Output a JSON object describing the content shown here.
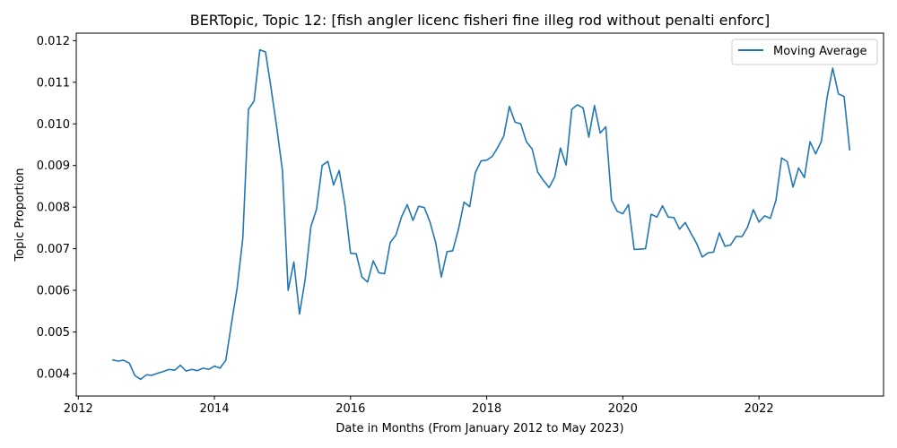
{
  "chart_data": {
    "type": "line",
    "title": "BERTopic, Topic 12: [fish angler licenc fisheri fine illeg rod without penalti enforc]",
    "xlabel": "Date in Months (From January 2012 to May 2023)",
    "ylabel": "Topic Proportion",
    "xlim": [
      2011.97,
      2023.83
    ],
    "ylim": [
      0.00346,
      0.01218
    ],
    "x_ticks": [
      2012,
      2014,
      2016,
      2018,
      2020,
      2022
    ],
    "y_ticks": [
      0.004,
      0.005,
      0.006,
      0.007,
      0.008,
      0.009,
      0.01,
      0.011,
      0.012
    ],
    "y_tick_labels": [
      "0.004",
      "0.005",
      "0.006",
      "0.007",
      "0.008",
      "0.009",
      "0.010",
      "0.011",
      "0.012"
    ],
    "grid": false,
    "legend_position": "top-right",
    "series": [
      {
        "name": "Moving Average",
        "color": "#1f77b4",
        "x": [
          2012.5,
          2012.583,
          2012.667,
          2012.75,
          2012.833,
          2012.917,
          2013.0,
          2013.083,
          2013.167,
          2013.25,
          2013.333,
          2013.417,
          2013.5,
          2013.583,
          2013.667,
          2013.75,
          2013.833,
          2013.917,
          2014.0,
          2014.083,
          2014.167,
          2014.25,
          2014.333,
          2014.417,
          2014.5,
          2014.583,
          2014.667,
          2014.75,
          2014.833,
          2014.917,
          2015.0,
          2015.083,
          2015.167,
          2015.25,
          2015.333,
          2015.417,
          2015.5,
          2015.583,
          2015.667,
          2015.75,
          2015.833,
          2015.917,
          2016.0,
          2016.083,
          2016.167,
          2016.25,
          2016.333,
          2016.417,
          2016.5,
          2016.583,
          2016.667,
          2016.75,
          2016.833,
          2016.917,
          2017.0,
          2017.083,
          2017.167,
          2017.25,
          2017.333,
          2017.417,
          2017.5,
          2017.583,
          2017.667,
          2017.75,
          2017.833,
          2017.917,
          2018.0,
          2018.083,
          2018.167,
          2018.25,
          2018.333,
          2018.417,
          2018.5,
          2018.583,
          2018.667,
          2018.75,
          2018.833,
          2018.917,
          2019.0,
          2019.083,
          2019.167,
          2019.25,
          2019.333,
          2019.417,
          2019.5,
          2019.583,
          2019.667,
          2019.75,
          2019.833,
          2019.917,
          2020.0,
          2020.083,
          2020.167,
          2020.25,
          2020.333,
          2020.417,
          2020.5,
          2020.583,
          2020.667,
          2020.75,
          2020.833,
          2020.917,
          2021.0,
          2021.083,
          2021.167,
          2021.25,
          2021.333,
          2021.417,
          2021.5,
          2021.583,
          2021.667,
          2021.75,
          2021.833,
          2021.917,
          2022.0,
          2022.083,
          2022.167,
          2022.25,
          2022.333,
          2022.417,
          2022.5,
          2022.583,
          2022.667,
          2022.75,
          2022.833,
          2022.917,
          2023.0,
          2023.083,
          2023.167,
          2023.25,
          2023.333
        ],
        "values": [
          0.00433,
          0.0043,
          0.00432,
          0.00425,
          0.00395,
          0.00386,
          0.00397,
          0.00396,
          0.00401,
          0.00405,
          0.0041,
          0.00408,
          0.0042,
          0.00406,
          0.0041,
          0.00407,
          0.00413,
          0.0041,
          0.00418,
          0.00413,
          0.00432,
          0.0052,
          0.00605,
          0.00725,
          0.01035,
          0.01055,
          0.01178,
          0.01173,
          0.01085,
          0.0099,
          0.00887,
          0.006,
          0.00668,
          0.00543,
          0.00626,
          0.00753,
          0.00795,
          0.009,
          0.0091,
          0.00853,
          0.00888,
          0.00805,
          0.00689,
          0.00688,
          0.00632,
          0.0062,
          0.00671,
          0.00642,
          0.0064,
          0.00715,
          0.00733,
          0.00777,
          0.00806,
          0.00768,
          0.00802,
          0.00799,
          0.00764,
          0.00715,
          0.00632,
          0.00693,
          0.00695,
          0.00745,
          0.00812,
          0.00801,
          0.00883,
          0.00911,
          0.00913,
          0.00922,
          0.00945,
          0.0097,
          0.01042,
          0.01004,
          0.01,
          0.00957,
          0.0094,
          0.00884,
          0.00864,
          0.00847,
          0.00873,
          0.00942,
          0.00901,
          0.01035,
          0.01046,
          0.01038,
          0.00968,
          0.01044,
          0.00978,
          0.00993,
          0.00817,
          0.0079,
          0.00784,
          0.00806,
          0.00698,
          0.00699,
          0.007,
          0.00783,
          0.00776,
          0.00803,
          0.00776,
          0.00775,
          0.00747,
          0.00763,
          0.00737,
          0.00713,
          0.0068,
          0.0069,
          0.00692,
          0.00738,
          0.00706,
          0.00709,
          0.0073,
          0.00729,
          0.00752,
          0.00794,
          0.00764,
          0.00779,
          0.00773,
          0.00817,
          0.00918,
          0.00909,
          0.00848,
          0.00894,
          0.00871,
          0.00957,
          0.00928,
          0.00958,
          0.01063,
          0.01134,
          0.01072,
          0.01066,
          0.00936
        ]
      }
    ]
  }
}
